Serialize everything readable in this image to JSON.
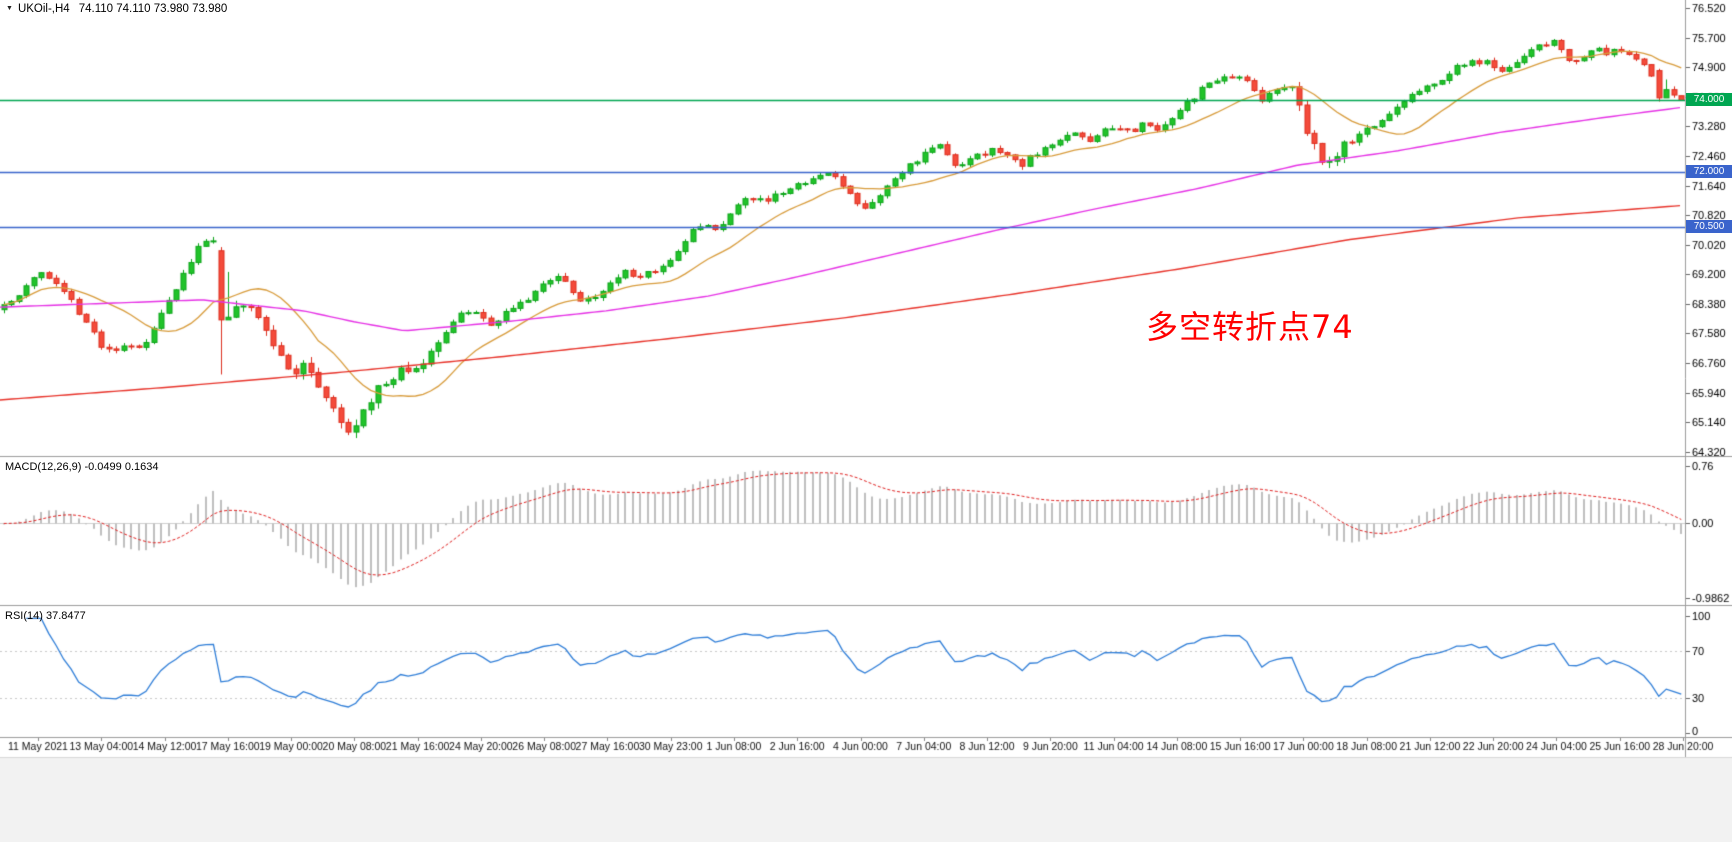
{
  "window": {
    "bg": "#ffffff",
    "bottom_strip_bg": "#f2f2f2"
  },
  "title": {
    "dropdown_icon": "▼",
    "symbol_period": "UKOil-,H4",
    "ohlc": "74.110 74.110 73.980 73.980"
  },
  "annotation": {
    "text": "多空转折点74",
    "color": "#ff0000"
  },
  "indicator_labels": {
    "macd": "MACD(12,26,9) -0.0499 0.1634",
    "rsi": "RSI(14) 37.8477"
  },
  "chart_data": {
    "type": "candlestick",
    "symbol": "UKOil-",
    "timeframe": "H4",
    "current_ohlc": {
      "open": 74.11,
      "high": 74.11,
      "low": 73.98,
      "close": 73.98
    },
    "ylim": [
      64.32,
      76.52
    ],
    "price_axis_labels": [
      "76.520",
      "75.700",
      "74.900",
      "74.080",
      "73.280",
      "72.460",
      "71.640",
      "70.820",
      "70.020",
      "69.200",
      "68.380",
      "67.580",
      "66.760",
      "65.940",
      "65.140",
      "64.320"
    ],
    "x_labels": [
      "11 May 2021",
      "13 May 04:00",
      "14 May 12:00",
      "17 May 16:00",
      "19 May 00:00",
      "20 May 08:00",
      "21 May 16:00",
      "24 May 20:00",
      "26 May 08:00",
      "27 May 16:00",
      "30 May 23:00",
      "1 Jun 08:00",
      "2 Jun 16:00",
      "4 Jun 00:00",
      "7 Jun 04:00",
      "8 Jun 12:00",
      "9 Jun 20:00",
      "11 Jun 04:00",
      "14 Jun 08:00",
      "15 Jun 16:00",
      "17 Jun 00:00",
      "18 Jun 08:00",
      "21 Jun 12:00",
      "22 Jun 20:00",
      "24 Jun 04:00",
      "25 Jun 16:00",
      "28 Jun 20:00"
    ],
    "candles_count": 225,
    "noise_seed": 20210628,
    "candle_colors": {
      "up_fill": "#21c32a",
      "up_stroke": "#0da51a",
      "down_fill": "#f44b3b",
      "down_stroke": "#dd2f1f"
    },
    "price_path": [
      [
        0,
        68.35
      ],
      [
        0.01,
        68.7
      ],
      [
        0.021,
        69.25
      ],
      [
        0.032,
        68.9
      ],
      [
        0.041,
        68.4
      ],
      [
        0.05,
        67.8
      ],
      [
        0.059,
        67.2
      ],
      [
        0.065,
        67.0
      ],
      [
        0.072,
        67.25
      ],
      [
        0.08,
        67.1
      ],
      [
        0.088,
        67.6
      ],
      [
        0.096,
        68.3
      ],
      [
        0.104,
        68.9
      ],
      [
        0.11,
        69.4
      ],
      [
        0.116,
        69.9
      ],
      [
        0.122,
        70.15
      ],
      [
        0.128,
        70.05
      ],
      [
        0.132,
        68.0
      ],
      [
        0.138,
        68.35
      ],
      [
        0.145,
        68.5
      ],
      [
        0.152,
        68.1
      ],
      [
        0.159,
        67.4
      ],
      [
        0.166,
        66.9
      ],
      [
        0.173,
        66.55
      ],
      [
        0.18,
        66.7
      ],
      [
        0.187,
        66.3
      ],
      [
        0.194,
        65.6
      ],
      [
        0.2,
        65.15
      ],
      [
        0.206,
        64.95
      ],
      [
        0.213,
        65.35
      ],
      [
        0.22,
        65.9
      ],
      [
        0.228,
        66.3
      ],
      [
        0.236,
        66.55
      ],
      [
        0.244,
        66.45
      ],
      [
        0.252,
        66.85
      ],
      [
        0.26,
        67.4
      ],
      [
        0.268,
        67.95
      ],
      [
        0.276,
        68.2
      ],
      [
        0.284,
        68.05
      ],
      [
        0.291,
        67.8
      ],
      [
        0.299,
        68.15
      ],
      [
        0.307,
        68.45
      ],
      [
        0.315,
        68.6
      ],
      [
        0.323,
        69.0
      ],
      [
        0.33,
        69.2
      ],
      [
        0.338,
        68.85
      ],
      [
        0.346,
        68.4
      ],
      [
        0.354,
        68.65
      ],
      [
        0.362,
        69.0
      ],
      [
        0.37,
        69.25
      ],
      [
        0.378,
        69.1
      ],
      [
        0.386,
        69.3
      ],
      [
        0.394,
        69.35
      ],
      [
        0.402,
        69.8
      ],
      [
        0.41,
        70.4
      ],
      [
        0.417,
        70.65
      ],
      [
        0.424,
        70.35
      ],
      [
        0.432,
        70.8
      ],
      [
        0.44,
        71.15
      ],
      [
        0.448,
        71.35
      ],
      [
        0.456,
        71.25
      ],
      [
        0.464,
        71.45
      ],
      [
        0.472,
        71.6
      ],
      [
        0.48,
        71.85
      ],
      [
        0.488,
        72.0
      ],
      [
        0.496,
        71.8
      ],
      [
        0.504,
        71.4
      ],
      [
        0.511,
        70.95
      ],
      [
        0.519,
        71.25
      ],
      [
        0.527,
        71.6
      ],
      [
        0.535,
        71.9
      ],
      [
        0.543,
        72.3
      ],
      [
        0.551,
        72.6
      ],
      [
        0.559,
        72.75
      ],
      [
        0.566,
        72.1
      ],
      [
        0.574,
        72.3
      ],
      [
        0.582,
        72.5
      ],
      [
        0.59,
        72.65
      ],
      [
        0.598,
        72.45
      ],
      [
        0.606,
        72.2
      ],
      [
        0.614,
        72.5
      ],
      [
        0.622,
        72.65
      ],
      [
        0.63,
        72.9
      ],
      [
        0.638,
        73.05
      ],
      [
        0.646,
        72.85
      ],
      [
        0.654,
        73.1
      ],
      [
        0.662,
        73.25
      ],
      [
        0.67,
        73.1
      ],
      [
        0.678,
        73.3
      ],
      [
        0.686,
        73.15
      ],
      [
        0.694,
        73.4
      ],
      [
        0.702,
        73.7
      ],
      [
        0.71,
        74.1
      ],
      [
        0.718,
        74.4
      ],
      [
        0.726,
        74.55
      ],
      [
        0.734,
        74.65
      ],
      [
        0.742,
        74.5
      ],
      [
        0.749,
        74.0
      ],
      [
        0.757,
        74.2
      ],
      [
        0.765,
        74.45
      ],
      [
        0.772,
        73.9
      ],
      [
        0.778,
        73.0
      ],
      [
        0.784,
        72.45
      ],
      [
        0.79,
        72.25
      ],
      [
        0.797,
        72.6
      ],
      [
        0.805,
        72.9
      ],
      [
        0.813,
        73.2
      ],
      [
        0.821,
        73.45
      ],
      [
        0.829,
        73.7
      ],
      [
        0.837,
        74.0
      ],
      [
        0.845,
        74.25
      ],
      [
        0.853,
        74.45
      ],
      [
        0.861,
        74.7
      ],
      [
        0.869,
        74.95
      ],
      [
        0.877,
        75.1
      ],
      [
        0.885,
        75.0
      ],
      [
        0.893,
        74.75
      ],
      [
        0.901,
        74.95
      ],
      [
        0.909,
        75.25
      ],
      [
        0.917,
        75.5
      ],
      [
        0.925,
        75.55
      ],
      [
        0.933,
        75.0
      ],
      [
        0.941,
        75.15
      ],
      [
        0.949,
        75.35
      ],
      [
        0.957,
        75.3
      ],
      [
        0.965,
        75.35
      ],
      [
        0.973,
        75.2
      ],
      [
        0.981,
        74.8
      ],
      [
        0.989,
        74.25
      ],
      [
        1,
        73.98
      ]
    ],
    "volatile_zones": [
      [
        0.118,
        0.26
      ],
      [
        0.765,
        0.8
      ]
    ],
    "special_candles": [
      {
        "f": 0.1315,
        "o": 69.85,
        "h": 69.95,
        "l": 66.45,
        "c": 67.95
      },
      {
        "f": 0.986,
        "o": 74.8,
        "h": 74.85,
        "l": 73.95,
        "c": 74.05
      },
      {
        "f": 1.0,
        "o": 74.11,
        "h": 74.11,
        "l": 73.98,
        "c": 73.98
      }
    ],
    "moving_averages": [
      {
        "name": "fast-ma",
        "method": "sma_close",
        "period": 14,
        "color": "#d89c3c"
      },
      {
        "name": "medium-ma",
        "color": "#e632e6",
        "waypoints": [
          [
            0,
            68.3
          ],
          [
            0.12,
            68.5
          ],
          [
            0.18,
            68.2
          ],
          [
            0.21,
            67.9
          ],
          [
            0.24,
            67.65
          ],
          [
            0.3,
            67.9
          ],
          [
            0.36,
            68.2
          ],
          [
            0.42,
            68.6
          ],
          [
            0.47,
            69.1
          ],
          [
            0.53,
            69.75
          ],
          [
            0.59,
            70.4
          ],
          [
            0.65,
            71.0
          ],
          [
            0.71,
            71.55
          ],
          [
            0.77,
            72.2
          ],
          [
            0.83,
            72.6
          ],
          [
            0.89,
            73.1
          ],
          [
            0.95,
            73.5
          ],
          [
            1,
            73.8
          ]
        ]
      },
      {
        "name": "slow-ma",
        "color": "#e8332a",
        "waypoints": [
          [
            0,
            65.75
          ],
          [
            0.1,
            66.1
          ],
          [
            0.2,
            66.5
          ],
          [
            0.3,
            66.95
          ],
          [
            0.4,
            67.45
          ],
          [
            0.5,
            68.0
          ],
          [
            0.6,
            68.65
          ],
          [
            0.7,
            69.35
          ],
          [
            0.8,
            70.15
          ],
          [
            0.9,
            70.75
          ],
          [
            1,
            71.1
          ]
        ]
      }
    ],
    "hlines": [
      {
        "price": 74.0,
        "label": "74.000",
        "color": "#00a651"
      },
      {
        "price": 72.0,
        "label": "72.000",
        "color": "#3a64cc"
      },
      {
        "price": 70.5,
        "label": "70.500",
        "color": "#3a64cc"
      }
    ],
    "indicators": [
      {
        "type": "macd",
        "params": [
          12,
          26,
          9
        ],
        "display_main": -0.0499,
        "display_signal": 0.1634,
        "vmax": 0.76,
        "vmin": -0.9862,
        "axis_labels": [
          "0.76",
          "0.00",
          "-0.9862"
        ],
        "axis_values": [
          0.76,
          0,
          -0.9862
        ],
        "histogram_color": "#bfbfbf",
        "signal_color": "#e02020"
      },
      {
        "type": "rsi",
        "period": 14,
        "display_value": 37.8477,
        "axis_labels": [
          "100",
          "70",
          "30",
          "0"
        ],
        "axis_values": [
          100,
          70,
          30,
          0
        ],
        "levels": [
          70,
          30
        ],
        "line_color": "#2f7ed8"
      }
    ]
  }
}
